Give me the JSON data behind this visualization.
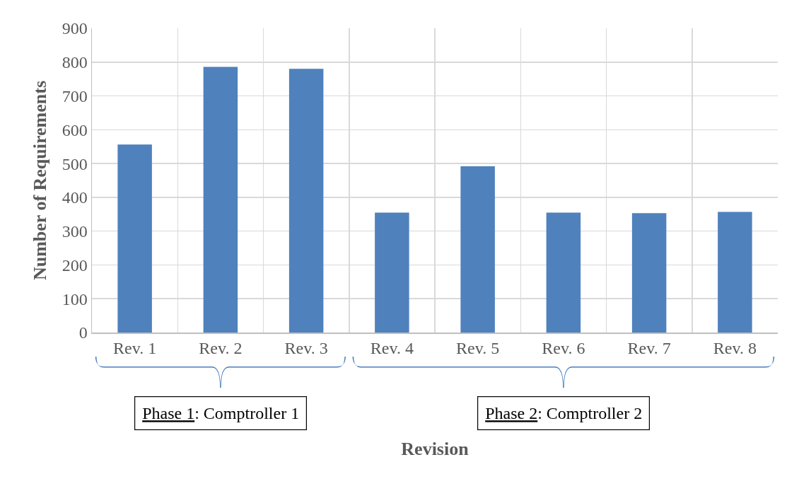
{
  "chart_data": {
    "type": "bar",
    "xlabel": "Revision",
    "ylabel": "Number of Requirements",
    "categories": [
      "Rev. 1",
      "Rev. 2",
      "Rev. 3",
      "Rev. 4",
      "Rev. 5",
      "Rev. 6",
      "Rev. 7",
      "Rev. 8"
    ],
    "values": [
      556,
      786,
      780,
      355,
      492,
      355,
      353,
      357
    ],
    "color": "#4f81bd",
    "ylim": [
      0,
      900
    ],
    "yticks": [
      0,
      100,
      200,
      300,
      400,
      500,
      600,
      700,
      800,
      900
    ],
    "grid": true,
    "annotations": [
      "Phase 1: Comptroller 1",
      "Phase 2: Comptroller 2"
    ]
  }
}
